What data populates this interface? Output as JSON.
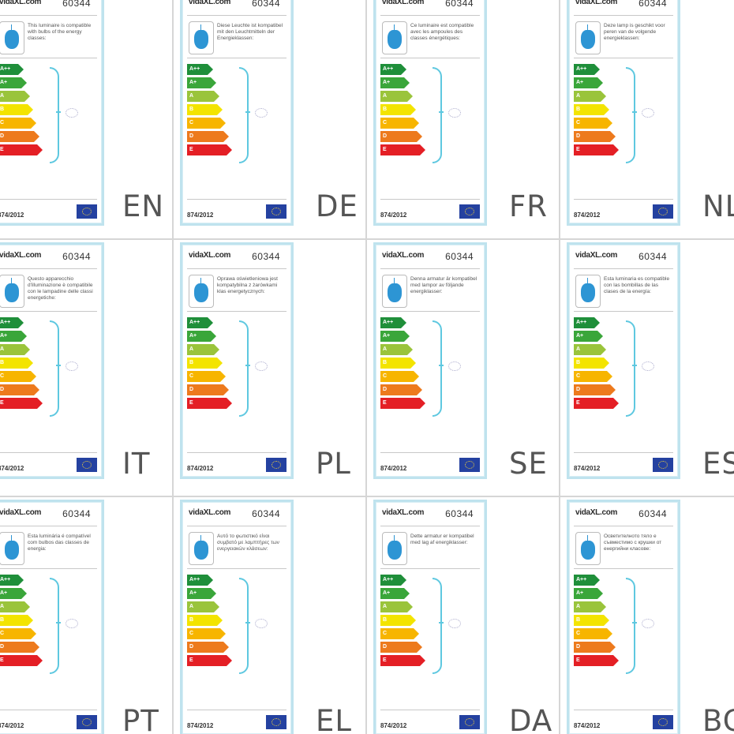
{
  "brand": "vidaXL.com",
  "product_code": "60344",
  "regulation": "874/2012",
  "energy_classes": [
    "A++",
    "A+",
    "A",
    "B",
    "C",
    "D",
    "E"
  ],
  "colors": {
    "frame": "#bfe3ee",
    "lamp": "#2d95d4",
    "brace": "#5ec8e0",
    "eu_flag": "#2441a0",
    "classes": [
      "#1f8f3a",
      "#3aa63a",
      "#9ac43b",
      "#f3e400",
      "#f7b500",
      "#ed7a1d",
      "#e41f25"
    ]
  },
  "labels": [
    {
      "lang": "EN",
      "desc": "This luminaire is compatible with bulbs of the energy classes:"
    },
    {
      "lang": "DE",
      "desc": "Diese Leuchte ist kompatibel mit den Leuchtmitteln der Energieklassen:"
    },
    {
      "lang": "FR",
      "desc": "Ce luminaire est compatible avec les ampoules des classes énergétiques:"
    },
    {
      "lang": "NL",
      "desc": "Deze lamp is geschikt voor peren van de volgende energieklassen:"
    },
    {
      "lang": "IT",
      "desc": "Questo apparecchio d'illuminazione è compatibile con le lampadine delle classi energetiche:"
    },
    {
      "lang": "PL",
      "desc": "Oprawa oświetleniowa jest kompatybilna z żarówkami klas energetycznych:"
    },
    {
      "lang": "SE",
      "desc": "Denna armatur är kompatibel med lampor av följande energiklasser:"
    },
    {
      "lang": "ES",
      "desc": "Esta luminaria es compatible con las bombillas de las clases de la energía:"
    },
    {
      "lang": "PT",
      "desc": "Esta luminária é compatível com bulbos das classes de energia:"
    },
    {
      "lang": "EL",
      "desc": "Αυτό το φωτιστικό είναι συμβατό με λαμπτήρες των ενεργειακών κλάσεων:"
    },
    {
      "lang": "DA",
      "desc": "Dette armatur er kompatibel med lag af energiklasser:"
    },
    {
      "lang": "BG",
      "desc": "Осветителното тяло е съвместимо с крушки от енергийни класове:"
    }
  ]
}
